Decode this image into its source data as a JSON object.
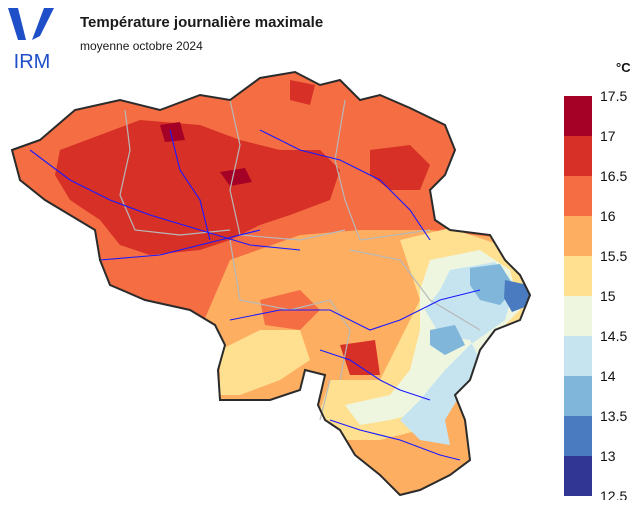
{
  "header": {
    "title": "Température journalière maximale",
    "subtitle": "moyenne octobre 2024"
  },
  "logo": {
    "text": "IRM",
    "color": "#1f4fc8"
  },
  "legend": {
    "unit": "°C",
    "ticks": [
      "17.5",
      "17",
      "16.5",
      "16",
      "15.5",
      "15",
      "14.5",
      "14",
      "13.5",
      "13",
      "12.5"
    ],
    "colors": [
      "#a50026",
      "#d73027",
      "#f46d43",
      "#fdae61",
      "#fee090",
      "#eef6e0",
      "#c5e4f0",
      "#7fb6d9",
      "#4a7bc0",
      "#313695"
    ]
  },
  "map": {
    "country_outline_color": "#2b2b2b",
    "river_color": "#1a1aff",
    "province_border_color": "#b8b8b8"
  }
}
